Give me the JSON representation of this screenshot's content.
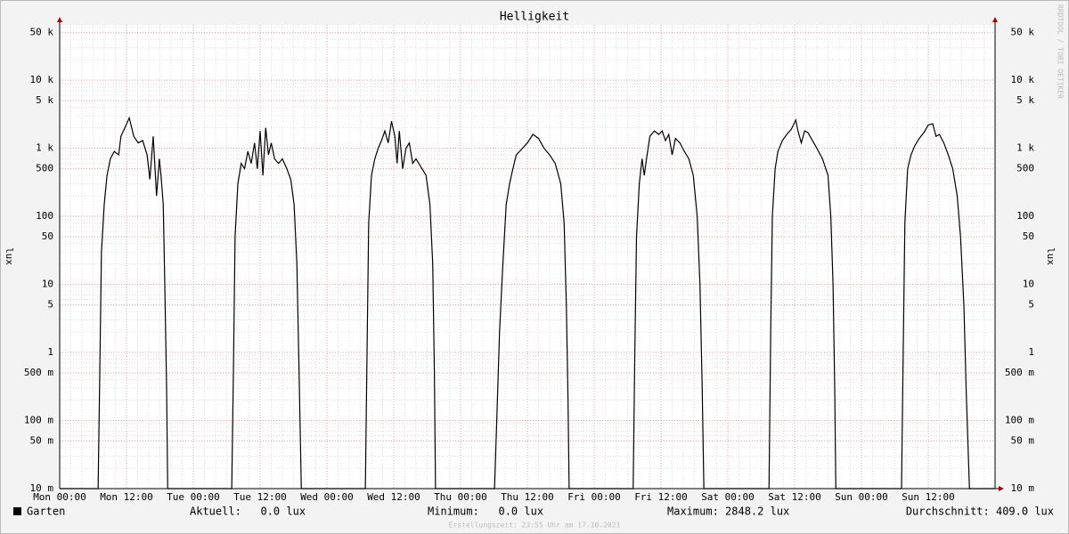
{
  "chart_data": {
    "type": "line",
    "title": "Helligkeit",
    "y_label": "lux",
    "y2_label": "lux",
    "log_scale": true,
    "grid": true,
    "xlim": [
      0,
      168
    ],
    "ylim": [
      0.01,
      65000
    ],
    "xticks": [
      {
        "value": 0,
        "label": "Mon 00:00"
      },
      {
        "value": 12,
        "label": "Mon 12:00"
      },
      {
        "value": 24,
        "label": "Tue 00:00"
      },
      {
        "value": 36,
        "label": "Tue 12:00"
      },
      {
        "value": 48,
        "label": "Wed 00:00"
      },
      {
        "value": 60,
        "label": "Wed 12:00"
      },
      {
        "value": 72,
        "label": "Thu 00:00"
      },
      {
        "value": 84,
        "label": "Thu 12:00"
      },
      {
        "value": 96,
        "label": "Fri 00:00"
      },
      {
        "value": 108,
        "label": "Fri 12:00"
      },
      {
        "value": 120,
        "label": "Sat 00:00"
      },
      {
        "value": 132,
        "label": "Sat 12:00"
      },
      {
        "value": 144,
        "label": "Sun 00:00"
      },
      {
        "value": 156,
        "label": "Sun 12:00"
      }
    ],
    "yticks": [
      {
        "value": 0.01,
        "label": "10 m"
      },
      {
        "value": 0.05,
        "label": "50 m"
      },
      {
        "value": 0.1,
        "label": "100 m"
      },
      {
        "value": 0.5,
        "label": "500 m"
      },
      1,
      5,
      10,
      50,
      100,
      500,
      {
        "value": 1000,
        "label": "1 k"
      },
      {
        "value": 5000,
        "label": "5 k"
      },
      {
        "value": 10000,
        "label": "10 k"
      },
      {
        "value": 50000,
        "label": "50 k"
      }
    ],
    "x": [
      0,
      6.9,
      7.2,
      7.5,
      8.0,
      8.5,
      9.1,
      9.8,
      10.6,
      11.0,
      11.7,
      12.5,
      13.3,
      14.1,
      14.9,
      15.7,
      16.2,
      16.8,
      17.4,
      17.9,
      18.2,
      18.6,
      18.9,
      19.2,
      19.4,
      30.9,
      31.2,
      31.5,
      32.0,
      32.6,
      33.2,
      33.8,
      34.4,
      35.0,
      35.5,
      36.0,
      36.5,
      37.0,
      37.5,
      38.0,
      38.6,
      39.3,
      40.0,
      40.8,
      41.5,
      42.1,
      42.6,
      43.0,
      43.4,
      54.9,
      55.2,
      55.5,
      56.0,
      56.6,
      57.2,
      57.8,
      58.4,
      59.0,
      59.6,
      60.2,
      60.6,
      61.0,
      61.6,
      62.2,
      62.8,
      63.4,
      64.0,
      65.8,
      66.5,
      67.0,
      67.3,
      67.5,
      78.1,
      78.5,
      79.0,
      79.6,
      80.2,
      80.8,
      81.4,
      82.0,
      82.6,
      84.0,
      85.0,
      86.0,
      87.0,
      88.0,
      89.0,
      90.0,
      90.6,
      91.0,
      91.3,
      91.5,
      103.0,
      103.3,
      103.6,
      104.1,
      104.6,
      105.0,
      105.4,
      106.0,
      106.8,
      107.6,
      108.2,
      108.8,
      109.4,
      110.0,
      110.6,
      111.4,
      112.2,
      113.0,
      113.8,
      114.5,
      115.0,
      115.4,
      115.7,
      127.4,
      127.7,
      128.0,
      128.5,
      129.0,
      129.8,
      130.6,
      131.4,
      132.2,
      132.6,
      133.2,
      133.8,
      134.4,
      135.2,
      136.0,
      137.0,
      138.0,
      138.5,
      138.9,
      139.2,
      139.4,
      151.2,
      151.5,
      151.8,
      152.3,
      152.9,
      153.6,
      154.4,
      155.2,
      156.0,
      156.8,
      157.4,
      158.0,
      158.8,
      159.6,
      160.4,
      161.2,
      161.8,
      162.4,
      162.8,
      163.4,
      167.9
    ],
    "series": [
      {
        "name": "Garten",
        "color": "#000000",
        "values": [
          0.01,
          0.01,
          0.5,
          30,
          150,
          400,
          700,
          900,
          800,
          1500,
          2000,
          2800,
          1500,
          1200,
          1300,
          800,
          350,
          1500,
          200,
          700,
          400,
          150,
          8,
          0.3,
          0.01,
          0.01,
          0.5,
          50,
          300,
          600,
          500,
          900,
          600,
          1200,
          500,
          1800,
          400,
          2000,
          800,
          1200,
          700,
          600,
          700,
          500,
          350,
          150,
          20,
          0.5,
          0.01,
          0.01,
          1,
          80,
          400,
          700,
          1000,
          1300,
          1800,
          1200,
          2500,
          1500,
          600,
          1800,
          500,
          1000,
          1200,
          600,
          700,
          400,
          150,
          20,
          0.5,
          0.01,
          0.01,
          0.1,
          2,
          20,
          150,
          300,
          500,
          800,
          900,
          1200,
          1600,
          1400,
          1000,
          800,
          600,
          300,
          80,
          5,
          0.2,
          0.01,
          0.01,
          1,
          50,
          300,
          700,
          400,
          700,
          1500,
          1800,
          1600,
          1800,
          1300,
          1600,
          800,
          1400,
          1200,
          900,
          700,
          400,
          100,
          10,
          0.3,
          0.01,
          0.01,
          2,
          100,
          500,
          900,
          1300,
          1600,
          1900,
          2600,
          1800,
          1200,
          1800,
          1700,
          1300,
          1000,
          700,
          400,
          100,
          10,
          0.3,
          0.01,
          0.01,
          1,
          80,
          500,
          800,
          1100,
          1400,
          1700,
          2200,
          2300,
          1500,
          1600,
          1200,
          800,
          500,
          200,
          50,
          5,
          0.3,
          0.01,
          0.01
        ]
      }
    ],
    "legend_stats": {
      "current": "Aktuell:   0.0 lux",
      "minimum": "Minimum:   0.0 lux",
      "maximum": "Maximum: 2848.2 lux",
      "average": "Durchschnitt: 409.0 lux"
    },
    "footer": "Erstellungszeit: 23:55 Uhr am 17.10.2021",
    "watermark": "RRDTOOL / TOBI OETIKER"
  }
}
